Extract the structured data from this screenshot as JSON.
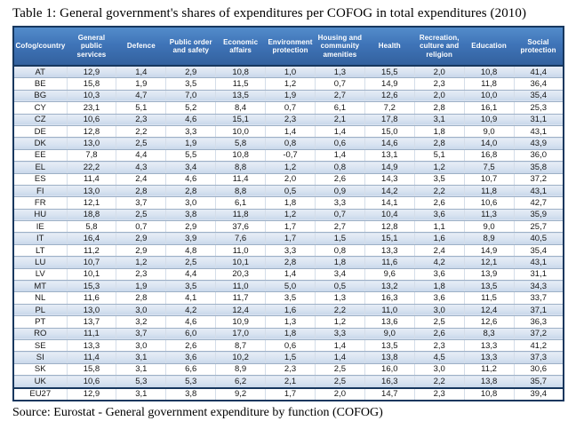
{
  "title": "Table 1: General government's shares of expenditures per COFOG in total expenditures (2010)",
  "source": "Source: Eurostat - General government expenditure by function (COFOG)",
  "colors": {
    "header_bg": "#3f74b8",
    "outer_border": "#17375e",
    "stripe_fill": "#d7e2f0",
    "row_line": "#9db0c6",
    "header_text": "#ffffff",
    "body_text": "#161616"
  },
  "table": {
    "columns": [
      "Cofog/country",
      "General public services",
      "Defence",
      "Public order and safety",
      "Economic affairs",
      "Environment protection",
      "Housing and community amenities",
      "Health",
      "Recreation, culture and religion",
      "Education",
      "Social protection"
    ],
    "rows": [
      [
        "AT",
        "12,9",
        "1,4",
        "2,9",
        "10,8",
        "1,0",
        "1,3",
        "15,5",
        "2,0",
        "10,8",
        "41,4"
      ],
      [
        "BE",
        "15,8",
        "1,9",
        "3,5",
        "11,5",
        "1,2",
        "0,7",
        "14,9",
        "2,3",
        "11,8",
        "36,4"
      ],
      [
        "BG",
        "10,3",
        "4,7",
        "7,0",
        "13,5",
        "1,9",
        "2,7",
        "12,6",
        "2,0",
        "10,0",
        "35,4"
      ],
      [
        "CY",
        "23,1",
        "5,1",
        "5,2",
        "8,4",
        "0,7",
        "6,1",
        "7,2",
        "2,8",
        "16,1",
        "25,3"
      ],
      [
        "CZ",
        "10,6",
        "2,3",
        "4,6",
        "15,1",
        "2,3",
        "2,1",
        "17,8",
        "3,1",
        "10,9",
        "31,1"
      ],
      [
        "DE",
        "12,8",
        "2,2",
        "3,3",
        "10,0",
        "1,4",
        "1,4",
        "15,0",
        "1,8",
        "9,0",
        "43,1"
      ],
      [
        "DK",
        "13,0",
        "2,5",
        "1,9",
        "5,8",
        "0,8",
        "0,6",
        "14,6",
        "2,8",
        "14,0",
        "43,9"
      ],
      [
        "EE",
        "7,8",
        "4,4",
        "5,5",
        "10,8",
        "-0,7",
        "1,4",
        "13,1",
        "5,1",
        "16,8",
        "36,0"
      ],
      [
        "EL",
        "22,2",
        "4,3",
        "3,4",
        "8,8",
        "1,2",
        "0,8",
        "14,9",
        "1,2",
        "7,5",
        "35,8"
      ],
      [
        "ES",
        "11,4",
        "2,4",
        "4,6",
        "11,4",
        "2,0",
        "2,6",
        "14,3",
        "3,5",
        "10,7",
        "37,2"
      ],
      [
        "FI",
        "13,0",
        "2,8",
        "2,8",
        "8,8",
        "0,5",
        "0,9",
        "14,2",
        "2,2",
        "11,8",
        "43,1"
      ],
      [
        "FR",
        "12,1",
        "3,7",
        "3,0",
        "6,1",
        "1,8",
        "3,3",
        "14,1",
        "2,6",
        "10,6",
        "42,7"
      ],
      [
        "HU",
        "18,8",
        "2,5",
        "3,8",
        "11,8",
        "1,2",
        "0,7",
        "10,4",
        "3,6",
        "11,3",
        "35,9"
      ],
      [
        "IE",
        "5,8",
        "0,7",
        "2,9",
        "37,6",
        "1,7",
        "2,7",
        "12,8",
        "1,1",
        "9,0",
        "25,7"
      ],
      [
        "IT",
        "16,4",
        "2,9",
        "3,9",
        "7,6",
        "1,7",
        "1,5",
        "15,1",
        "1,6",
        "8,9",
        "40,5"
      ],
      [
        "LT",
        "11,2",
        "2,9",
        "4,8",
        "11,0",
        "3,3",
        "0,8",
        "13,3",
        "2,4",
        "14,9",
        "35,4"
      ],
      [
        "LU",
        "10,7",
        "1,2",
        "2,5",
        "10,1",
        "2,8",
        "1,8",
        "11,6",
        "4,2",
        "12,1",
        "43,1"
      ],
      [
        "LV",
        "10,1",
        "2,3",
        "4,4",
        "20,3",
        "1,4",
        "3,4",
        "9,6",
        "3,6",
        "13,9",
        "31,1"
      ],
      [
        "MT",
        "15,3",
        "1,9",
        "3,5",
        "11,0",
        "5,0",
        "0,5",
        "13,2",
        "1,8",
        "13,5",
        "34,3"
      ],
      [
        "NL",
        "11,6",
        "2,8",
        "4,1",
        "11,7",
        "3,5",
        "1,3",
        "16,3",
        "3,6",
        "11,5",
        "33,7"
      ],
      [
        "PL",
        "13,0",
        "3,0",
        "4,2",
        "12,4",
        "1,6",
        "2,2",
        "11,0",
        "3,0",
        "12,4",
        "37,1"
      ],
      [
        "PT",
        "13,7",
        "3,2",
        "4,6",
        "10,9",
        "1,3",
        "1,2",
        "13,6",
        "2,5",
        "12,6",
        "36,3"
      ],
      [
        "RO",
        "11,1",
        "3,7",
        "6,0",
        "17,0",
        "1,8",
        "3,3",
        "9,0",
        "2,6",
        "8,3",
        "37,2"
      ],
      [
        "SE",
        "13,3",
        "3,0",
        "2,6",
        "8,7",
        "0,6",
        "1,4",
        "13,5",
        "2,3",
        "13,3",
        "41,2"
      ],
      [
        "SI",
        "11,4",
        "3,1",
        "3,6",
        "10,2",
        "1,5",
        "1,4",
        "13,8",
        "4,5",
        "13,3",
        "37,3"
      ],
      [
        "SK",
        "15,8",
        "3,1",
        "6,6",
        "8,9",
        "2,3",
        "2,5",
        "16,0",
        "3,0",
        "11,2",
        "30,6"
      ],
      [
        "UK",
        "10,6",
        "5,3",
        "5,3",
        "6,2",
        "2,1",
        "2,5",
        "16,3",
        "2,2",
        "13,8",
        "35,7"
      ],
      [
        "EU27",
        "12,9",
        "3,1",
        "3,8",
        "9,2",
        "1,7",
        "2,0",
        "14,7",
        "2,3",
        "10,8",
        "39,4"
      ]
    ],
    "total_row_label": "EU27"
  }
}
